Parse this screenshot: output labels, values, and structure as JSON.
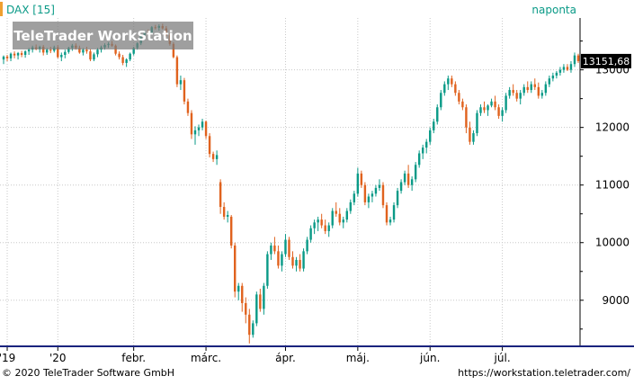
{
  "header": {
    "symbol_label": "DAX [15]",
    "period_label": "naponta",
    "watermark": "TeleTrader WorkStation"
  },
  "footer": {
    "copyright": "© 2020 TeleTrader Software GmbH",
    "url": "https://workstation.teletrader.com/"
  },
  "colors": {
    "up": "#0a9a87",
    "down": "#e0621e",
    "grid": "#c8c8c8",
    "axis": "#000000",
    "price_tag_bg": "#000000",
    "price_tag_text": "#ffffff",
    "bottom_rule": "#1a237e",
    "left_marker": "#f0a030"
  },
  "chart_data": {
    "type": "candlestick",
    "title": "DAX [15]",
    "interval": "naponta",
    "last_price_label": "13151,68",
    "last_price": 13151.68,
    "ylim": [
      8200,
      13900
    ],
    "y_ticks": [
      {
        "value": 9000,
        "label": "9000"
      },
      {
        "value": 10000,
        "label": "10000"
      },
      {
        "value": 11000,
        "label": "11000"
      },
      {
        "value": 12000,
        "label": "12000"
      },
      {
        "value": 13000,
        "label": "13000"
      }
    ],
    "x_ticks": [
      {
        "index": 1,
        "label": "'19"
      },
      {
        "index": 15,
        "label": "'20"
      },
      {
        "index": 36,
        "label": "febr."
      },
      {
        "index": 56,
        "label": "márc."
      },
      {
        "index": 78,
        "label": "ápr."
      },
      {
        "index": 98,
        "label": "máj."
      },
      {
        "index": 118,
        "label": "jún."
      },
      {
        "index": 138,
        "label": "júl."
      }
    ],
    "grid": true,
    "ohlc_order": [
      "open",
      "high",
      "low",
      "close"
    ],
    "candles": [
      [
        13180,
        13250,
        13100,
        13230
      ],
      [
        13230,
        13260,
        13150,
        13200
      ],
      [
        13200,
        13300,
        13150,
        13280
      ],
      [
        13280,
        13320,
        13200,
        13250
      ],
      [
        13250,
        13310,
        13180,
        13290
      ],
      [
        13290,
        13330,
        13220,
        13260
      ],
      [
        13260,
        13340,
        13210,
        13320
      ],
      [
        13320,
        13380,
        13260,
        13350
      ],
      [
        13350,
        13420,
        13300,
        13390
      ],
      [
        13390,
        13440,
        13340,
        13360
      ],
      [
        13360,
        13420,
        13300,
        13400
      ],
      [
        13400,
        13430,
        13250,
        13300
      ],
      [
        13300,
        13380,
        13260,
        13350
      ],
      [
        13350,
        13400,
        13290,
        13330
      ],
      [
        13330,
        13420,
        13300,
        13390
      ],
      [
        13390,
        13430,
        13200,
        13220
      ],
      [
        13220,
        13300,
        13150,
        13260
      ],
      [
        13260,
        13350,
        13200,
        13310
      ],
      [
        13310,
        13400,
        13280,
        13380
      ],
      [
        13380,
        13450,
        13330,
        13420
      ],
      [
        13420,
        13460,
        13350,
        13380
      ],
      [
        13380,
        13420,
        13280,
        13300
      ],
      [
        13300,
        13380,
        13250,
        13350
      ],
      [
        13350,
        13400,
        13280,
        13320
      ],
      [
        13320,
        13360,
        13150,
        13180
      ],
      [
        13180,
        13300,
        13150,
        13270
      ],
      [
        13270,
        13380,
        13220,
        13350
      ],
      [
        13350,
        13420,
        13300,
        13390
      ],
      [
        13390,
        13460,
        13350,
        13430
      ],
      [
        13430,
        13480,
        13380,
        13450
      ],
      [
        13450,
        13500,
        13400,
        13420
      ],
      [
        13420,
        13440,
        13250,
        13280
      ],
      [
        13280,
        13320,
        13180,
        13220
      ],
      [
        13220,
        13260,
        13080,
        13120
      ],
      [
        13120,
        13200,
        13050,
        13180
      ],
      [
        13180,
        13300,
        13150,
        13280
      ],
      [
        13280,
        13400,
        13250,
        13380
      ],
      [
        13380,
        13480,
        13350,
        13460
      ],
      [
        13460,
        13620,
        13430,
        13600
      ],
      [
        13600,
        13680,
        13560,
        13650
      ],
      [
        13650,
        13700,
        13600,
        13640
      ],
      [
        13640,
        13760,
        13620,
        13740
      ],
      [
        13740,
        13780,
        13700,
        13730
      ],
      [
        13730,
        13790,
        13680,
        13760
      ],
      [
        13760,
        13800,
        13700,
        13720
      ],
      [
        13720,
        13760,
        13580,
        13600
      ],
      [
        13600,
        13640,
        13420,
        13450
      ],
      [
        13450,
        13480,
        13200,
        13220
      ],
      [
        13220,
        13250,
        12700,
        12750
      ],
      [
        12750,
        12900,
        12650,
        12820
      ],
      [
        12820,
        12860,
        12400,
        12450
      ],
      [
        12450,
        12500,
        12200,
        12250
      ],
      [
        12250,
        12300,
        11800,
        11880
      ],
      [
        11880,
        12020,
        11700,
        11950
      ],
      [
        11950,
        12050,
        11850,
        12000
      ],
      [
        12000,
        12150,
        11950,
        12100
      ],
      [
        12100,
        12120,
        11800,
        11850
      ],
      [
        11850,
        11900,
        11480,
        11540
      ],
      [
        11540,
        11580,
        11400,
        11450
      ],
      [
        11450,
        11600,
        11350,
        11520
      ],
      [
        11050,
        11100,
        10500,
        10620
      ],
      [
        10620,
        10700,
        10400,
        10450
      ],
      [
        10450,
        10550,
        10350,
        10480
      ],
      [
        10450,
        10480,
        9900,
        9950
      ],
      [
        9950,
        10000,
        9050,
        9150
      ],
      [
        9150,
        9300,
        9000,
        9250
      ],
      [
        9250,
        9300,
        8800,
        8950
      ],
      [
        8950,
        9050,
        8600,
        8750
      ],
      [
        8750,
        8850,
        8250,
        8400
      ],
      [
        8400,
        8650,
        8350,
        8600
      ],
      [
        8600,
        9150,
        8550,
        9100
      ],
      [
        9100,
        9200,
        8800,
        8850
      ],
      [
        8850,
        9300,
        8750,
        9250
      ],
      [
        9250,
        9850,
        9200,
        9800
      ],
      [
        9800,
        10000,
        9700,
        9950
      ],
      [
        9950,
        10100,
        9800,
        9850
      ],
      [
        9850,
        9950,
        9550,
        9600
      ],
      [
        9600,
        9850,
        9500,
        9800
      ],
      [
        9800,
        10150,
        9750,
        10050
      ],
      [
        10050,
        10100,
        9700,
        9750
      ],
      [
        9750,
        9850,
        9550,
        9600
      ],
      [
        9600,
        9750,
        9500,
        9700
      ],
      [
        9700,
        9800,
        9500,
        9550
      ],
      [
        9550,
        9900,
        9500,
        9850
      ],
      [
        9850,
        10100,
        9800,
        10050
      ],
      [
        10050,
        10300,
        10000,
        10250
      ],
      [
        10250,
        10400,
        10150,
        10350
      ],
      [
        10350,
        10450,
        10200,
        10400
      ],
      [
        10400,
        10500,
        10250,
        10300
      ],
      [
        10300,
        10400,
        10150,
        10200
      ],
      [
        10200,
        10350,
        10100,
        10300
      ],
      [
        10300,
        10600,
        10250,
        10550
      ],
      [
        10550,
        10700,
        10450,
        10500
      ],
      [
        10500,
        10600,
        10300,
        10350
      ],
      [
        10350,
        10450,
        10250,
        10400
      ],
      [
        10400,
        10600,
        10350,
        10550
      ],
      [
        10550,
        10750,
        10500,
        10700
      ],
      [
        10700,
        10900,
        10650,
        10850
      ],
      [
        10850,
        11300,
        10800,
        11200
      ],
      [
        11200,
        11250,
        10950,
        11000
      ],
      [
        11000,
        11050,
        10650,
        10700
      ],
      [
        10700,
        10850,
        10600,
        10800
      ],
      [
        10800,
        10900,
        10700,
        10850
      ],
      [
        10850,
        11000,
        10800,
        10950
      ],
      [
        10950,
        11100,
        10900,
        11000
      ],
      [
        11000,
        11050,
        10600,
        10650
      ],
      [
        10650,
        10700,
        10300,
        10350
      ],
      [
        10350,
        10450,
        10300,
        10400
      ],
      [
        10400,
        10700,
        10350,
        10650
      ],
      [
        10650,
        10950,
        10600,
        10900
      ],
      [
        10900,
        11100,
        10850,
        11050
      ],
      [
        11050,
        11250,
        11000,
        11200
      ],
      [
        11200,
        11350,
        10950,
        11000
      ],
      [
        11000,
        11150,
        10900,
        11100
      ],
      [
        11100,
        11400,
        11050,
        11350
      ],
      [
        11350,
        11600,
        11300,
        11550
      ],
      [
        11550,
        11700,
        11450,
        11650
      ],
      [
        11650,
        11800,
        11550,
        11750
      ],
      [
        11750,
        12000,
        11700,
        11950
      ],
      [
        11950,
        12150,
        11900,
        12100
      ],
      [
        12100,
        12400,
        12050,
        12350
      ],
      [
        12350,
        12650,
        12300,
        12600
      ],
      [
        12600,
        12800,
        12550,
        12750
      ],
      [
        12750,
        12900,
        12650,
        12850
      ],
      [
        12850,
        12900,
        12700,
        12750
      ],
      [
        12750,
        12800,
        12550,
        12600
      ],
      [
        12600,
        12650,
        12400,
        12450
      ],
      [
        12450,
        12500,
        12300,
        12350
      ],
      [
        12350,
        12400,
        11900,
        12000
      ],
      [
        12000,
        12100,
        11700,
        11750
      ],
      [
        11750,
        11950,
        11700,
        11900
      ],
      [
        11900,
        12300,
        11850,
        12250
      ],
      [
        12250,
        12400,
        12200,
        12350
      ],
      [
        12350,
        12450,
        12250,
        12300
      ],
      [
        12300,
        12400,
        12200,
        12380
      ],
      [
        12380,
        12500,
        12350,
        12450
      ],
      [
        12450,
        12550,
        12300,
        12350
      ],
      [
        12350,
        12400,
        12150,
        12200
      ],
      [
        12200,
        12350,
        12100,
        12300
      ],
      [
        12300,
        12600,
        12250,
        12550
      ],
      [
        12550,
        12700,
        12500,
        12650
      ],
      [
        12650,
        12750,
        12550,
        12600
      ],
      [
        12600,
        12650,
        12450,
        12500
      ],
      [
        12500,
        12650,
        12400,
        12600
      ],
      [
        12600,
        12750,
        12550,
        12700
      ],
      [
        12700,
        12800,
        12600,
        12650
      ],
      [
        12650,
        12800,
        12600,
        12750
      ],
      [
        12750,
        12850,
        12650,
        12700
      ],
      [
        12700,
        12780,
        12500,
        12550
      ],
      [
        12550,
        12650,
        12500,
        12600
      ],
      [
        12600,
        12800,
        12550,
        12750
      ],
      [
        12750,
        12900,
        12700,
        12850
      ],
      [
        12850,
        12950,
        12800,
        12900
      ],
      [
        12900,
        12980,
        12850,
        12950
      ],
      [
        12950,
        13050,
        12900,
        13000
      ],
      [
        13000,
        13100,
        12950,
        13050
      ],
      [
        13050,
        13100,
        12980,
        13000
      ],
      [
        13000,
        13150,
        12950,
        13100
      ],
      [
        13100,
        13300,
        13050,
        13250
      ],
      [
        13250,
        13280,
        13120,
        13151
      ]
    ]
  }
}
